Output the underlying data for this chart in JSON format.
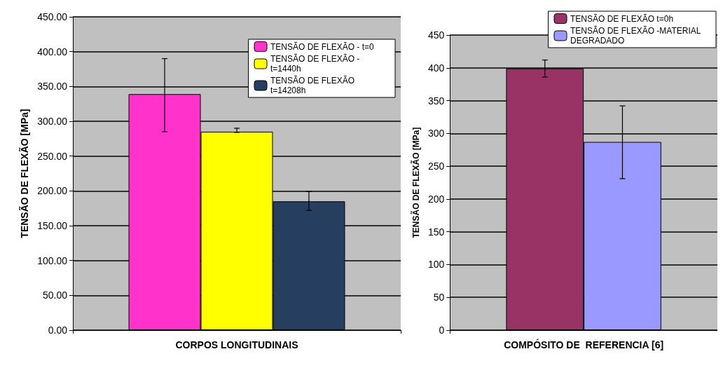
{
  "chart_data": [
    {
      "type": "bar",
      "categories": [
        "CORPOS LONGITUDINAIS"
      ],
      "ylabel": "TENSÃO DE FLEXÃO [MPa]",
      "ylim": [
        0,
        450
      ],
      "yticks": [
        {
          "value": 0,
          "label": "0.00"
        },
        {
          "value": 50,
          "label": "50.00"
        },
        {
          "value": 100,
          "label": "100.00"
        },
        {
          "value": 150,
          "label": "150.00"
        },
        {
          "value": 200,
          "label": "200.00"
        },
        {
          "value": 250,
          "label": "250.00"
        },
        {
          "value": 300,
          "label": "300.00"
        },
        {
          "value": 350,
          "label": "350.00"
        },
        {
          "value": 400,
          "label": "400.00"
        },
        {
          "value": 450,
          "label": "450.00"
        }
      ],
      "grid": "y",
      "legend": "top right",
      "series": [
        {
          "name": "TENSÃO DE FLEXÃO - t=0",
          "color": "#ff33cc",
          "values": [
            339
          ],
          "errors": [
            [
              285,
              390
            ]
          ]
        },
        {
          "name": "TENSÃO DE FLEXÃO - t=1440h",
          "color": "#ffff00",
          "values": [
            285
          ],
          "errors": [
            [
              284,
              290
            ]
          ]
        },
        {
          "name": "TENSÃO DE FLEXÃO t=14208h",
          "color": "#263f61",
          "values": [
            185
          ],
          "errors": [
            [
              172,
              199
            ]
          ]
        }
      ]
    },
    {
      "type": "bar",
      "categories": [
        "COMPÓSITO DE  REFERENCIA [6]"
      ],
      "ylabel": "TENSÃO DE FLEXÃO [MPa]",
      "ylim": [
        0,
        450
      ],
      "yticks": [
        0,
        50,
        100,
        150,
        200,
        250,
        300,
        350,
        400,
        450
      ],
      "grid": "y",
      "legend": "top right",
      "series": [
        {
          "name": "TENSÃO DE FLEXÃO t=0h",
          "color": "#993366",
          "values": [
            399
          ],
          "errors": [
            [
              386,
              412
            ]
          ]
        },
        {
          "name": "TENSÃO DE FLEXÃO -MATERIAL DEGRADADO",
          "color": "#9999ff",
          "values": [
            287
          ],
          "errors": [
            [
              231,
              342
            ]
          ]
        }
      ]
    }
  ]
}
